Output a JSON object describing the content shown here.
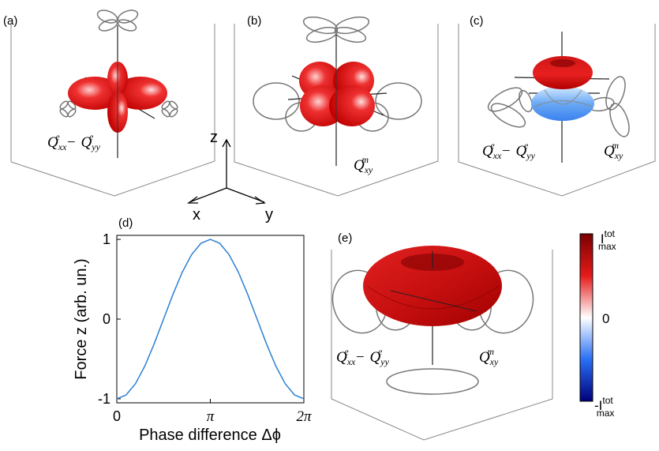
{
  "panels": {
    "a": {
      "label": "(a)",
      "formula": {
        "q1": "Q",
        "s1": "xx",
        "p1": "e",
        "minus": "−",
        "q2": "Q",
        "s2": "yy",
        "p2": "e"
      }
    },
    "b": {
      "label": "(b)",
      "formula": {
        "q": "Q",
        "s": "xy",
        "p": "m"
      }
    },
    "c": {
      "label": "(c)",
      "formula_e": {
        "q1": "Q",
        "s1": "xx",
        "p1": "e",
        "minus": "−",
        "q2": "Q",
        "s2": "yy",
        "p2": "e"
      },
      "formula_m": {
        "q": "Q",
        "s": "xy",
        "p": "m"
      }
    },
    "d": {
      "label": "(d)"
    },
    "e": {
      "label": "(e)",
      "formula_e": {
        "q1": "Q",
        "s1": "xx",
        "p1": "e",
        "minus": "−",
        "q2": "Q",
        "s2": "yy",
        "p2": "e"
      },
      "formula_m": {
        "q": "Q",
        "s": "xy",
        "p": "m"
      }
    }
  },
  "axes_triad": {
    "z": "z",
    "x": "x",
    "y": "y"
  },
  "colorbar": {
    "top": "I",
    "top_sup": "tot",
    "top_sub": "max",
    "mid": "0",
    "bottom": "-I",
    "bottom_sup": "tot",
    "bottom_sub": "max",
    "colors": {
      "high": "#7a0000",
      "mid_red": "#e41a1a",
      "white": "#ffffff",
      "mid_blue": "#2a6ff5",
      "low": "#00007a"
    }
  },
  "chart_data": {
    "type": "line",
    "xlabel": "Phase difference Δϕ",
    "ylabel": "Force z (arb. un.)",
    "xlim": [
      0,
      6.283185
    ],
    "ylim": [
      -1.05,
      1.05
    ],
    "xticks": [
      {
        "value": 0,
        "label": "0"
      },
      {
        "value": 3.141593,
        "label": "π"
      },
      {
        "value": 6.283185,
        "label": "2π"
      }
    ],
    "yticks": [
      {
        "value": -1,
        "label": "-1"
      },
      {
        "value": 0,
        "label": "0"
      },
      {
        "value": 1,
        "label": "1"
      }
    ],
    "series": [
      {
        "color": "#2c7fd1",
        "x": [
          0,
          0.3142,
          0.6283,
          0.9425,
          1.2566,
          1.5708,
          1.885,
          2.1991,
          2.5133,
          2.8274,
          3.1416,
          3.4558,
          3.7699,
          4.0841,
          4.3982,
          4.7124,
          5.0265,
          5.3407,
          5.6549,
          5.969,
          6.2832
        ],
        "y": [
          -1,
          -0.951,
          -0.809,
          -0.588,
          -0.309,
          0,
          0.309,
          0.588,
          0.809,
          0.951,
          1,
          0.951,
          0.809,
          0.588,
          0.309,
          0,
          -0.309,
          -0.588,
          -0.809,
          -0.951,
          -1
        ]
      }
    ],
    "grid": false
  }
}
